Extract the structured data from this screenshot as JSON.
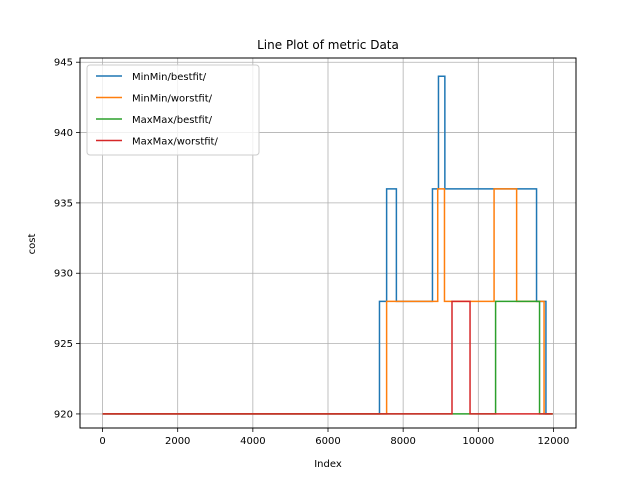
{
  "chart_data": {
    "type": "line",
    "title": "Line Plot of metric Data",
    "xlabel": "Index",
    "ylabel": "cost",
    "xlim": [
      -600,
      12600
    ],
    "ylim": [
      919.0,
      945.3
    ],
    "xticks": [
      0,
      2000,
      4000,
      6000,
      8000,
      10000,
      12000
    ],
    "yticks": [
      920,
      925,
      930,
      935,
      940,
      945
    ],
    "grid": true,
    "legend_position": "top-left",
    "series": [
      {
        "name": "MinMin/bestfit/",
        "color": "#1f77b4",
        "points": [
          [
            0,
            920
          ],
          [
            7370,
            920
          ],
          [
            7370,
            928
          ],
          [
            7560,
            928
          ],
          [
            7560,
            936
          ],
          [
            7820,
            936
          ],
          [
            7820,
            928
          ],
          [
            8780,
            928
          ],
          [
            8780,
            936
          ],
          [
            8940,
            936
          ],
          [
            8940,
            944
          ],
          [
            9110,
            944
          ],
          [
            9110,
            936
          ],
          [
            11550,
            936
          ],
          [
            11550,
            928
          ],
          [
            11800,
            928
          ],
          [
            11800,
            920
          ],
          [
            11980,
            920
          ]
        ]
      },
      {
        "name": "MinMin/worstfit/",
        "color": "#ff7f0e",
        "points": [
          [
            0,
            920
          ],
          [
            7560,
            920
          ],
          [
            7560,
            928
          ],
          [
            8920,
            928
          ],
          [
            8920,
            936
          ],
          [
            9100,
            936
          ],
          [
            9100,
            928
          ],
          [
            10420,
            928
          ],
          [
            10420,
            936
          ],
          [
            11020,
            936
          ],
          [
            11020,
            928
          ],
          [
            11750,
            928
          ],
          [
            11750,
            920
          ],
          [
            11980,
            920
          ]
        ]
      },
      {
        "name": "MaxMax/bestfit/",
        "color": "#2ca02c",
        "points": [
          [
            0,
            920
          ],
          [
            10460,
            920
          ],
          [
            10460,
            928
          ],
          [
            11630,
            928
          ],
          [
            11630,
            920
          ],
          [
            11980,
            920
          ]
        ]
      },
      {
        "name": "MaxMax/worstfit/",
        "color": "#d62728",
        "points": [
          [
            0,
            920
          ],
          [
            9300,
            920
          ],
          [
            9300,
            928
          ],
          [
            9780,
            928
          ],
          [
            9780,
            920
          ],
          [
            11980,
            920
          ]
        ]
      }
    ]
  }
}
